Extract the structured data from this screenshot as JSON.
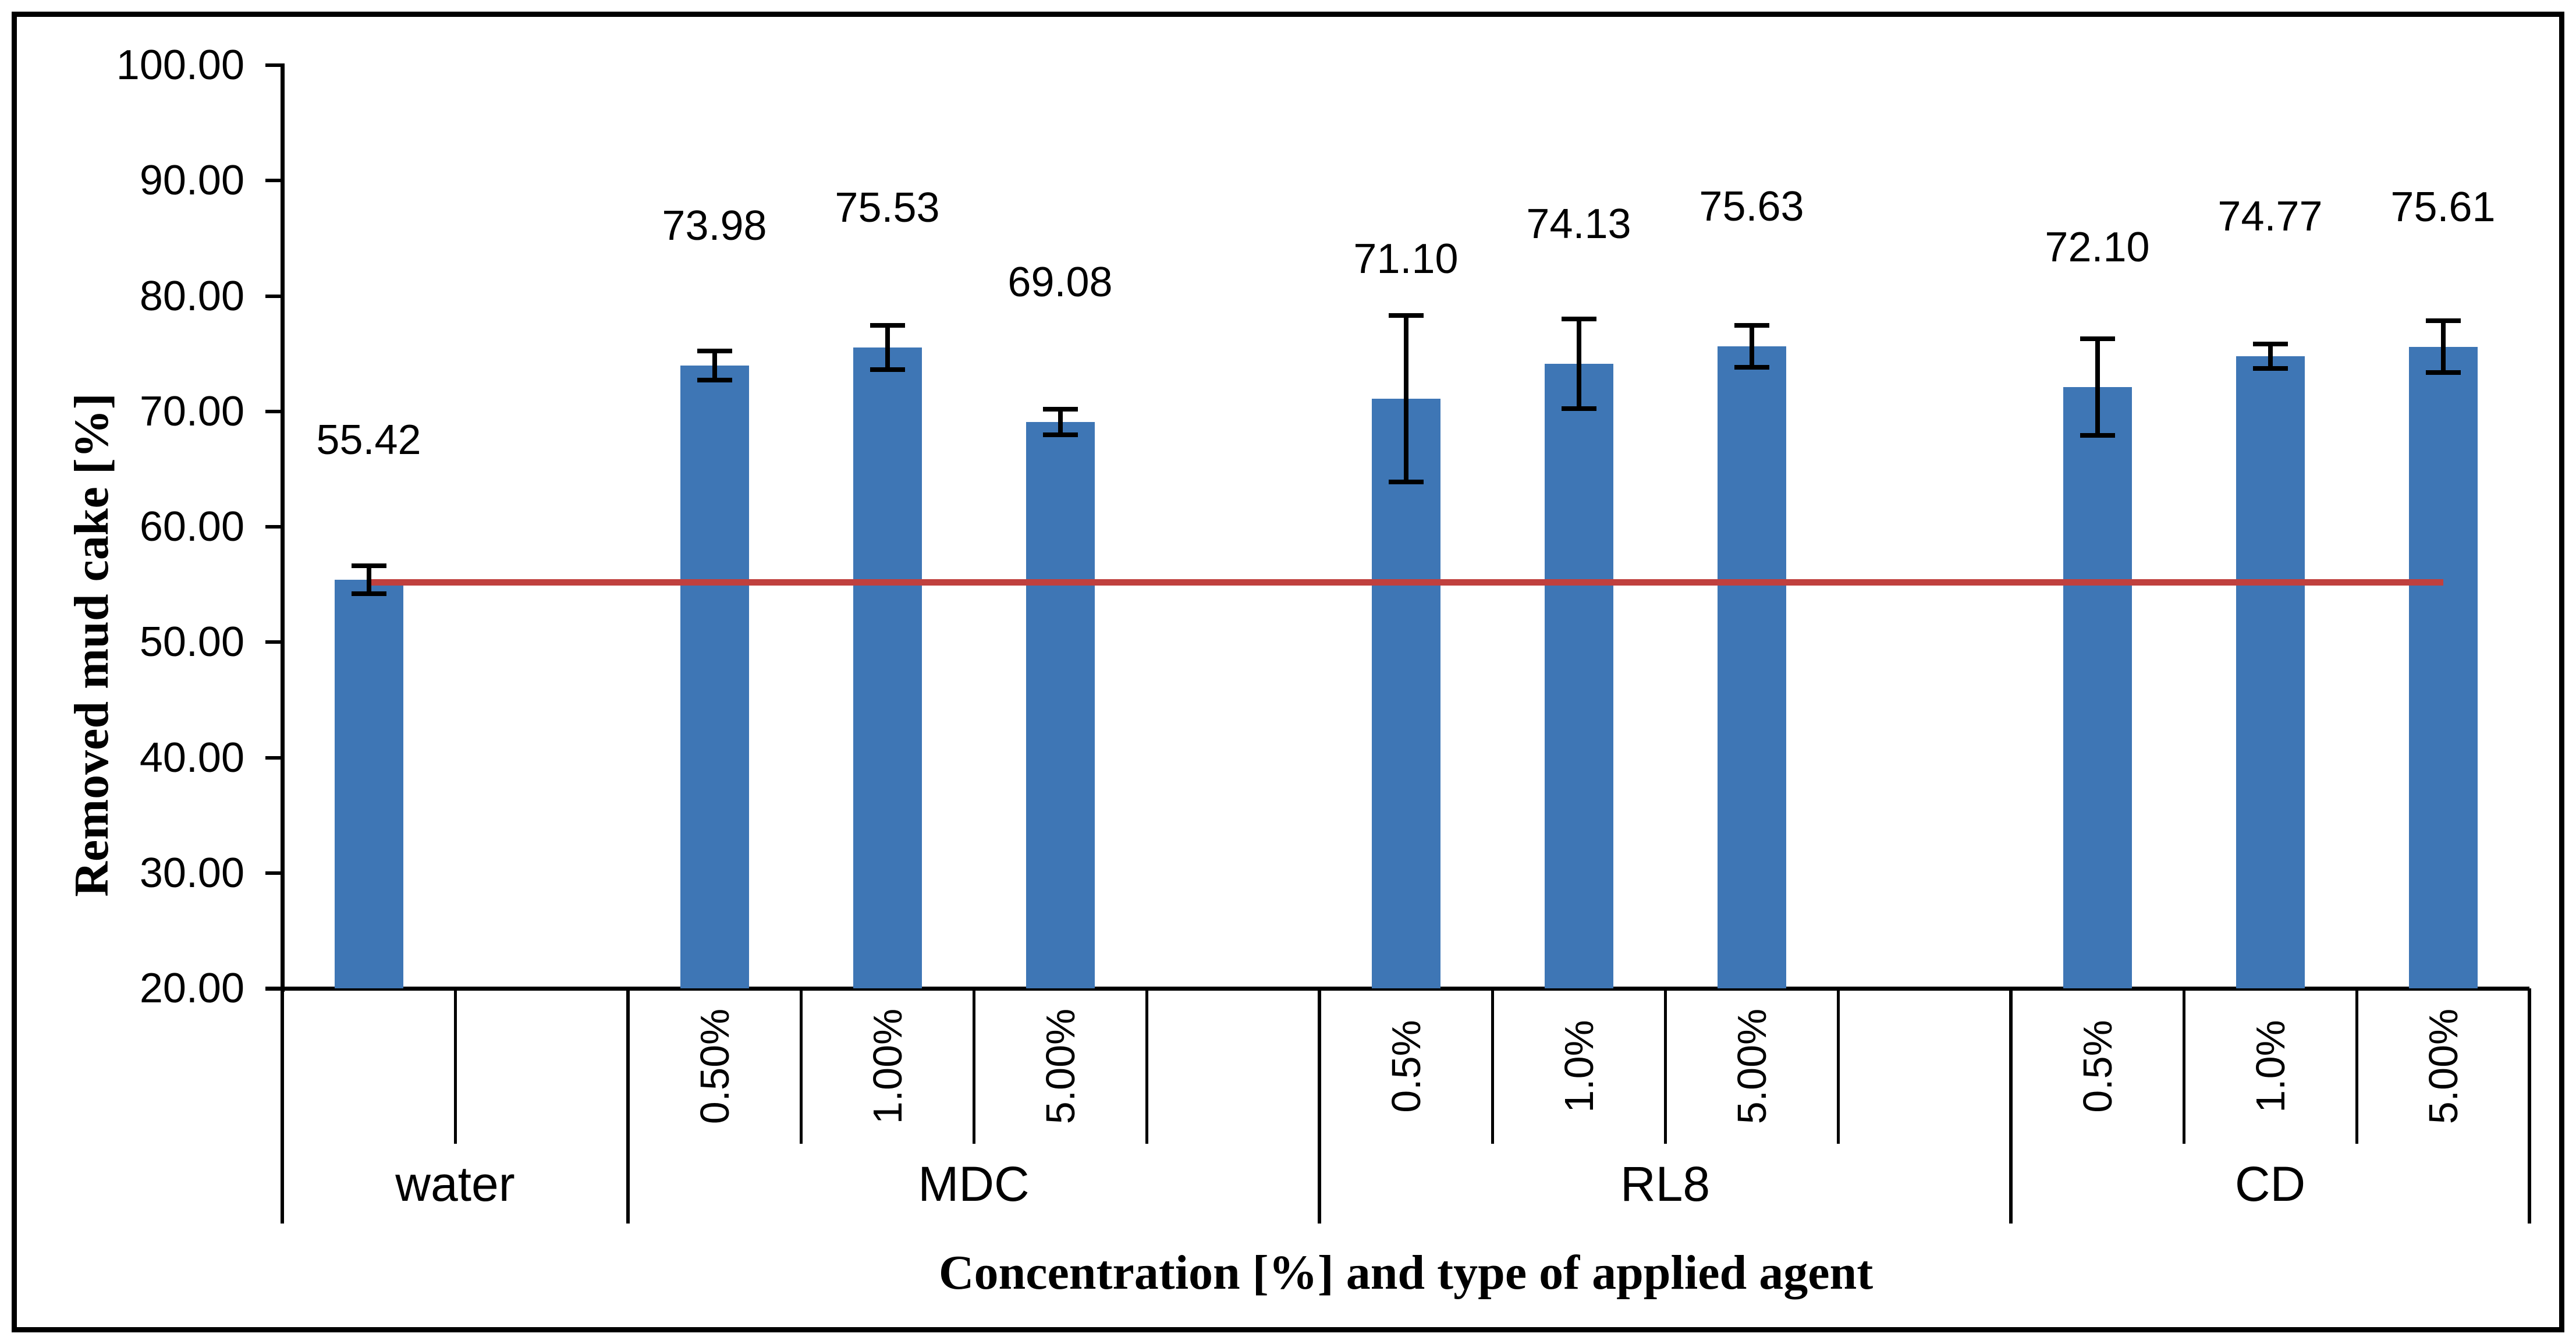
{
  "figure": {
    "background": "#ffffff",
    "border_color": "#000000"
  },
  "chart_data": {
    "type": "bar",
    "title": "",
    "xlabel": "Concentration [%] and type of applied agent",
    "ylabel": "Removed mud cake [%]",
    "ylim": [
      20,
      100
    ],
    "ytick_step": 10,
    "ytick_labels": [
      "100.00",
      "90.00",
      "80.00",
      "70.00",
      "60.00",
      "50.00",
      "40.00",
      "30.00",
      "20.00"
    ],
    "grid": false,
    "legend": null,
    "bar_color": "#3E76B5",
    "error_bar_color": "#000000",
    "reference_line": {
      "value": 55.42,
      "color": "#C0403E"
    },
    "groups": [
      {
        "label": "water",
        "cells": [
          {
            "tick": "",
            "value": 55.42,
            "value_label": "55.42",
            "err": 1.2
          },
          {
            "tick": "",
            "value": null
          }
        ]
      },
      {
        "label": "MDC",
        "cells": [
          {
            "tick": "0.50%",
            "value": 73.98,
            "value_label": "73.98",
            "err": 1.25
          },
          {
            "tick": "1.00%",
            "value": 75.53,
            "value_label": "75.53",
            "err": 1.9
          },
          {
            "tick": "5.00%",
            "value": 69.08,
            "value_label": "69.08",
            "err": 1.1
          },
          {
            "tick": "",
            "value": null
          }
        ]
      },
      {
        "label": "RL8",
        "cells": [
          {
            "tick": "0.5%",
            "value": 71.1,
            "value_label": "71.10",
            "err": 7.2
          },
          {
            "tick": "1.0%",
            "value": 74.13,
            "value_label": "74.13",
            "err": 3.9
          },
          {
            "tick": "5.00%",
            "value": 75.63,
            "value_label": "75.63",
            "err": 1.8
          },
          {
            "tick": "",
            "value": null
          }
        ]
      },
      {
        "label": "CD",
        "cells": [
          {
            "tick": "0.5%",
            "value": 72.1,
            "value_label": "72.10",
            "err": 4.2
          },
          {
            "tick": "1.0%",
            "value": 74.77,
            "value_label": "74.77",
            "err": 1.05
          },
          {
            "tick": "5.00%",
            "value": 75.61,
            "value_label": "75.61",
            "err": 2.25
          }
        ]
      }
    ]
  }
}
